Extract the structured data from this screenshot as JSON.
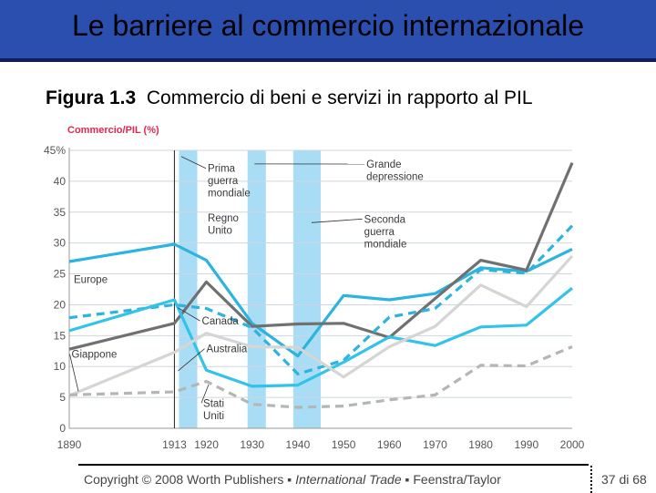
{
  "slide": {
    "title": "Le barriere al commercio internazionale",
    "figure_label": "Figura 1.3",
    "figure_caption": "Commercio di beni e servizi in rapporto al PIL",
    "footer_copyright": "Copyright © 2008 Worth Publishers",
    "footer_book": "International Trade",
    "footer_authors": "Feenstra/Taylor",
    "page": "37 di 68"
  },
  "chart_data": {
    "type": "line",
    "ylabel": "Commercio/PIL (%)",
    "x": [
      1890,
      1913,
      1920,
      1930,
      1940,
      1950,
      1960,
      1970,
      1980,
      1990,
      2000
    ],
    "xtick_labels": [
      "1890",
      "1913",
      "1920",
      "1930",
      "1940",
      "1950",
      "1960",
      "1970",
      "1980",
      "1990",
      "2000"
    ],
    "yticks": [
      0,
      5,
      10,
      15,
      20,
      25,
      30,
      35,
      40,
      45
    ],
    "ytick_labels": [
      "0",
      "5",
      "10",
      "15",
      "20",
      "25",
      "30",
      "35",
      "40",
      "45%"
    ],
    "ylim": [
      0,
      45
    ],
    "xlim": [
      1890,
      2000
    ],
    "grid": true,
    "vline_year": 1913,
    "war_bands": [
      [
        1914,
        1918
      ],
      [
        1929,
        1933
      ],
      [
        1939,
        1945
      ]
    ],
    "colors": {
      "band": "#a8ddf5",
      "grid": "#cfd6e2",
      "axis_label": "#e0284f",
      "axis_text": "#555555"
    },
    "series": [
      {
        "name": "Regno Unito",
        "color": "#2cb3de",
        "dashed": false,
        "values": [
          27,
          29.8,
          27.2,
          17,
          11.7,
          21.5,
          20.8,
          21.8,
          26,
          25.4,
          29
        ]
      },
      {
        "name": "Canada",
        "color": "#707070",
        "dashed": false,
        "values": [
          12.8,
          17,
          23.7,
          16.5,
          16.9,
          17,
          14.7,
          21,
          27.2,
          25.6,
          43
        ]
      },
      {
        "name": "",
        "color": "#2cb3de",
        "dashed": true,
        "values": [
          17.9,
          20,
          19.4,
          16.3,
          8.8,
          11,
          18,
          19.4,
          25.7,
          25.1,
          32.8
        ]
      },
      {
        "name": "Europe",
        "color": "#33c2e8",
        "dashed": false,
        "values": [
          15.8,
          20.8,
          9.4,
          6.8,
          7,
          10.7,
          14.8,
          13.4,
          16.4,
          16.7,
          22.7
        ]
      },
      {
        "name": "Australia",
        "color": "#d5d5d5",
        "dashed": false,
        "values": [
          5.3,
          12.3,
          15.4,
          13.2,
          13.1,
          8.3,
          13.2,
          16.5,
          23.2,
          19.7,
          27.9
        ]
      },
      {
        "name": "Stati Uniti",
        "color": "#b5b5b5",
        "dashed": true,
        "values": [
          5.4,
          5.9,
          7.6,
          3.9,
          3.4,
          3.6,
          4.6,
          5.4,
          10.2,
          10.1,
          13.2
        ]
      }
    ],
    "annotations": [
      {
        "text": [
          "Prima",
          "guerra",
          "mondiale"
        ],
        "at": [
          1920.3,
          41.5
        ],
        "to": [
          1914.5,
          44
        ]
      },
      {
        "text": [
          "Regno",
          "Unito"
        ],
        "at": [
          1920.3,
          33.5
        ],
        "to": null
      },
      {
        "text": [
          "Grande",
          "depressione"
        ],
        "at": [
          1955,
          42.2
        ],
        "to": [
          1930.5,
          42.8
        ]
      },
      {
        "text": [
          "Seconda",
          "guerra",
          "mondiale"
        ],
        "at": [
          1954.5,
          33.3
        ],
        "to": [
          1943,
          33.3
        ]
      },
      {
        "text": [
          "Europe"
        ],
        "at": [
          1891,
          23.5
        ],
        "to": null
      },
      {
        "text": [
          "Canada"
        ],
        "at": [
          1919,
          16.8
        ],
        "to": [
          1913.8,
          19.5
        ]
      },
      {
        "text": [
          "Australia"
        ],
        "at": [
          1920,
          12.3
        ],
        "to": [
          1913.8,
          9.3
        ]
      },
      {
        "text": [
          "Giappone"
        ],
        "at": [
          1890.5,
          11.4
        ],
        "to": [
          1892,
          6
        ]
      },
      {
        "text": [
          "Stati",
          "Uniti"
        ],
        "at": [
          1919.3,
          3.5
        ],
        "to": [
          1920.5,
          7.1
        ]
      }
    ]
  }
}
